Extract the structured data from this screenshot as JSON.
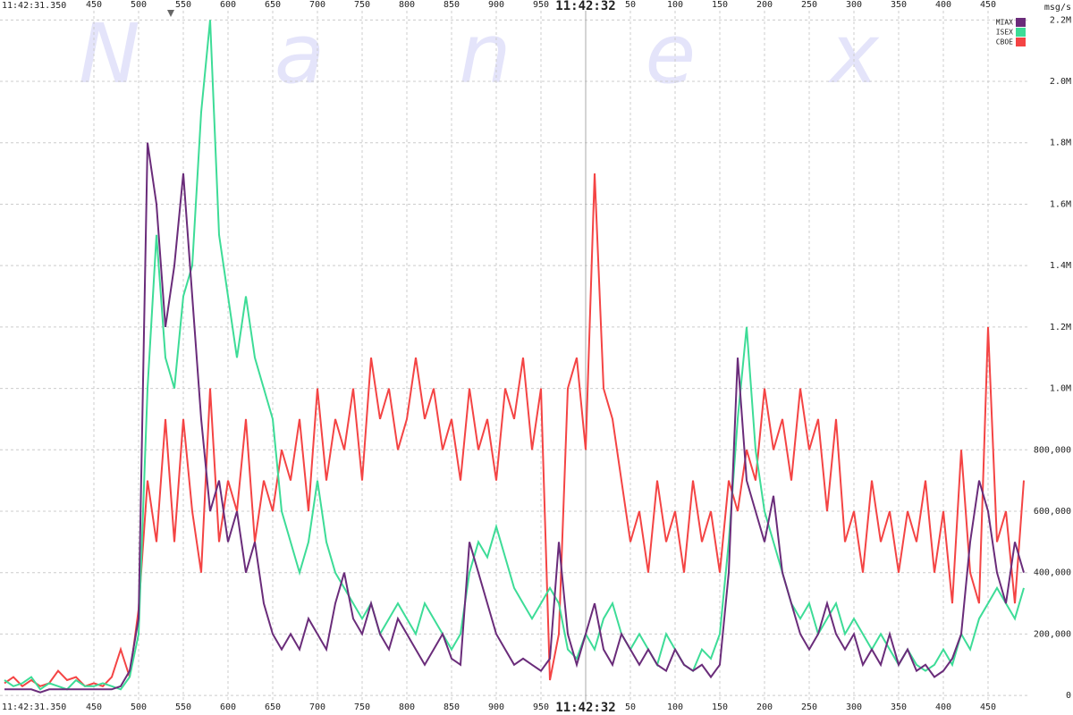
{
  "chart_data": {
    "type": "line",
    "watermark": "Nanex",
    "start_label": "11:42:31.350",
    "ylabel": "msg/s",
    "legend": "top-right",
    "grid": true,
    "xlim": [
      345,
      1495
    ],
    "xticks": [
      450,
      500,
      550,
      600,
      650,
      700,
      750,
      800,
      850,
      900,
      950,
      {
        "value": 1000,
        "label": "11:42:32"
      },
      {
        "value": 1050,
        "label": "50"
      },
      {
        "value": 1100,
        "label": "100"
      },
      {
        "value": 1150,
        "label": "150"
      },
      {
        "value": 1200,
        "label": "200"
      },
      {
        "value": 1250,
        "label": "250"
      },
      {
        "value": 1300,
        "label": "300"
      },
      {
        "value": 1350,
        "label": "350"
      },
      {
        "value": 1400,
        "label": "400"
      },
      {
        "value": 1450,
        "label": "450"
      }
    ],
    "ylim": [
      -20000,
      2265000
    ],
    "yticks": [
      0,
      {
        "value": 200000,
        "label": "200,000"
      },
      {
        "value": 400000,
        "label": "400,000"
      },
      {
        "value": 600000,
        "label": "600,000"
      },
      {
        "value": 800000,
        "label": "800,000"
      },
      {
        "value": 1000000,
        "label": "1.0M"
      },
      {
        "value": 1200000,
        "label": "1.2M"
      },
      {
        "value": 1400000,
        "label": "1.4M"
      },
      {
        "value": 1600000,
        "label": "1.6M"
      },
      {
        "value": 1800000,
        "label": "1.8M"
      },
      {
        "value": 2000000,
        "label": "2.0M"
      },
      {
        "value": 2200000,
        "label": "2.2M"
      }
    ],
    "x": [
      350,
      360,
      370,
      380,
      390,
      400,
      410,
      420,
      430,
      440,
      450,
      460,
      470,
      480,
      490,
      500,
      510,
      520,
      530,
      540,
      550,
      560,
      570,
      580,
      590,
      600,
      610,
      620,
      630,
      640,
      650,
      660,
      670,
      680,
      690,
      700,
      710,
      720,
      730,
      740,
      750,
      760,
      770,
      780,
      790,
      800,
      810,
      820,
      830,
      840,
      850,
      860,
      870,
      880,
      890,
      900,
      910,
      920,
      930,
      940,
      950,
      960,
      970,
      980,
      990,
      1000,
      1010,
      1020,
      1030,
      1040,
      1050,
      1060,
      1070,
      1080,
      1090,
      1100,
      1110,
      1120,
      1130,
      1140,
      1150,
      1160,
      1170,
      1180,
      1190,
      1200,
      1210,
      1220,
      1230,
      1240,
      1250,
      1260,
      1270,
      1280,
      1290,
      1300,
      1310,
      1320,
      1330,
      1340,
      1350,
      1360,
      1370,
      1380,
      1390,
      1400,
      1410,
      1420,
      1430,
      1440,
      1450,
      1460,
      1470,
      1480,
      1490
    ],
    "series": [
      {
        "name": "CBOE",
        "color": "#f44444",
        "values": [
          40000,
          60000,
          30000,
          50000,
          30000,
          40000,
          80000,
          50000,
          60000,
          30000,
          40000,
          30000,
          60000,
          150000,
          60000,
          280000,
          700000,
          500000,
          900000,
          500000,
          900000,
          600000,
          400000,
          1000000,
          500000,
          700000,
          600000,
          900000,
          500000,
          700000,
          600000,
          800000,
          700000,
          900000,
          600000,
          1000000,
          700000,
          900000,
          800000,
          1000000,
          700000,
          1100000,
          900000,
          1000000,
          800000,
          900000,
          1100000,
          900000,
          1000000,
          800000,
          900000,
          700000,
          1000000,
          800000,
          900000,
          700000,
          1000000,
          900000,
          1100000,
          800000,
          1000000,
          50000,
          200000,
          1000000,
          1100000,
          800000,
          1700000,
          1000000,
          900000,
          700000,
          500000,
          600000,
          400000,
          700000,
          500000,
          600000,
          400000,
          700000,
          500000,
          600000,
          400000,
          700000,
          600000,
          800000,
          700000,
          1000000,
          800000,
          900000,
          700000,
          1000000,
          800000,
          900000,
          600000,
          900000,
          500000,
          600000,
          400000,
          700000,
          500000,
          600000,
          400000,
          600000,
          500000,
          700000,
          400000,
          600000,
          300000,
          800000,
          400000,
          300000,
          1200000,
          500000,
          600000,
          300000,
          700000
        ]
      },
      {
        "name": "ISEX",
        "color": "#3ddc97",
        "values": [
          50000,
          30000,
          40000,
          60000,
          20000,
          40000,
          30000,
          20000,
          50000,
          30000,
          30000,
          40000,
          30000,
          20000,
          60000,
          200000,
          1000000,
          1500000,
          1100000,
          1000000,
          1300000,
          1400000,
          1900000,
          2200000,
          1500000,
          1300000,
          1100000,
          1300000,
          1100000,
          1000000,
          900000,
          600000,
          500000,
          400000,
          500000,
          700000,
          500000,
          400000,
          350000,
          300000,
          250000,
          300000,
          200000,
          250000,
          300000,
          250000,
          200000,
          300000,
          250000,
          200000,
          150000,
          200000,
          400000,
          500000,
          450000,
          550000,
          450000,
          350000,
          300000,
          250000,
          300000,
          350000,
          300000,
          150000,
          120000,
          200000,
          150000,
          250000,
          300000,
          200000,
          150000,
          200000,
          150000,
          100000,
          200000,
          150000,
          100000,
          80000,
          150000,
          120000,
          200000,
          500000,
          900000,
          1200000,
          800000,
          600000,
          500000,
          400000,
          300000,
          250000,
          300000,
          200000,
          250000,
          300000,
          200000,
          250000,
          200000,
          150000,
          200000,
          150000,
          100000,
          150000,
          100000,
          80000,
          100000,
          150000,
          100000,
          200000,
          150000,
          250000,
          300000,
          350000,
          300000,
          250000,
          350000
        ]
      },
      {
        "name": "MIAX",
        "color": "#6a2c7a",
        "values": [
          20000,
          20000,
          20000,
          20000,
          10000,
          20000,
          20000,
          20000,
          20000,
          20000,
          20000,
          20000,
          20000,
          30000,
          80000,
          250000,
          1800000,
          1600000,
          1200000,
          1400000,
          1700000,
          1300000,
          900000,
          600000,
          700000,
          500000,
          600000,
          400000,
          500000,
          300000,
          200000,
          150000,
          200000,
          150000,
          250000,
          200000,
          150000,
          300000,
          400000,
          250000,
          200000,
          300000,
          200000,
          150000,
          250000,
          200000,
          150000,
          100000,
          150000,
          200000,
          120000,
          100000,
          500000,
          400000,
          300000,
          200000,
          150000,
          100000,
          120000,
          100000,
          80000,
          120000,
          500000,
          200000,
          100000,
          200000,
          300000,
          150000,
          100000,
          200000,
          150000,
          100000,
          150000,
          100000,
          80000,
          150000,
          100000,
          80000,
          100000,
          60000,
          100000,
          400000,
          1100000,
          700000,
          600000,
          500000,
          650000,
          400000,
          300000,
          200000,
          150000,
          200000,
          300000,
          200000,
          150000,
          200000,
          100000,
          150000,
          100000,
          200000,
          100000,
          150000,
          80000,
          100000,
          60000,
          80000,
          120000,
          200000,
          500000,
          700000,
          600000,
          400000,
          300000,
          500000,
          400000
        ]
      }
    ]
  }
}
